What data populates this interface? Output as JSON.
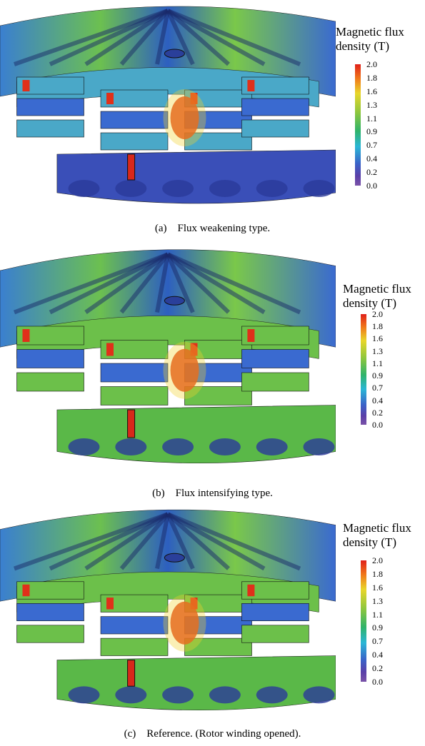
{
  "figures": [
    {
      "legend_title": [
        "Magnetic flux",
        "density (T)"
      ],
      "ticks": [
        "2.0",
        "1.8",
        "1.6",
        "1.3",
        "1.1",
        "0.9",
        "0.7",
        "0.4",
        "0.2",
        "0.0"
      ],
      "caption": {
        "label": "(a)",
        "text": "Flux weakening type."
      }
    },
    {
      "legend_title": [
        "Magnetic flux",
        "density (T)"
      ],
      "ticks": [
        "2.0",
        "1.8",
        "1.6",
        "1.3",
        "1.1",
        "0.9",
        "0.7",
        "0.4",
        "0.2",
        "0.0"
      ],
      "caption": {
        "label": "(b)",
        "text": "Flux intensifying type."
      }
    },
    {
      "legend_title": [
        "Magnetic flux",
        "density (T)"
      ],
      "ticks": [
        "2.0",
        "1.8",
        "1.6",
        "1.3",
        "1.1",
        "0.9",
        "0.7",
        "0.4",
        "0.2",
        "0.0"
      ],
      "caption": {
        "label": "(c)",
        "text": "Reference. (Rotor winding opened)."
      }
    }
  ]
}
